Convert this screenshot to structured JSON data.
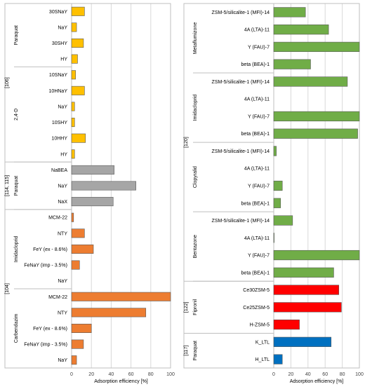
{
  "chart_data": [
    {
      "type": "bar",
      "orientation": "horizontal",
      "xlabel": "Adsorption efficiency [%]",
      "xlim": [
        0,
        100
      ],
      "xticks": [
        "0",
        "20",
        "40",
        "60",
        "80",
        "100"
      ],
      "grid": true,
      "groups": [
        {
          "ref": "[106]",
          "subgroups": [
            {
              "label": "Paraquat",
              "bars": [
                {
                  "category": "30SNaY",
                  "value": 13,
                  "color": "#FFC000"
                },
                {
                  "category": "NaY",
                  "value": 5,
                  "color": "#FFC000"
                },
                {
                  "category": "30SHY",
                  "value": 12,
                  "color": "#FFC000"
                },
                {
                  "category": "HY",
                  "value": 6,
                  "color": "#FFC000"
                }
              ]
            },
            {
              "label": "2,4-D",
              "bars": [
                {
                  "category": "10SNaY",
                  "value": 4,
                  "color": "#FFC000"
                },
                {
                  "category": "10HNaY",
                  "value": 13,
                  "color": "#FFC000"
                },
                {
                  "category": "NaY",
                  "value": 3,
                  "color": "#FFC000"
                },
                {
                  "category": "10SHY",
                  "value": 3,
                  "color": "#FFC000"
                },
                {
                  "category": "10HHY",
                  "value": 14,
                  "color": "#FFC000"
                },
                {
                  "category": "HY",
                  "value": 3,
                  "color": "#FFC000"
                }
              ]
            }
          ]
        },
        {
          "ref": "[114, 115]",
          "subgroups": [
            {
              "label": "Paraquat",
              "bars": [
                {
                  "category": "NaBEA",
                  "value": 43,
                  "color": "#A6A6A6"
                },
                {
                  "category": "NaY",
                  "value": 65,
                  "color": "#A6A6A6"
                },
                {
                  "category": "NaX",
                  "value": 42,
                  "color": "#A6A6A6"
                }
              ]
            }
          ]
        },
        {
          "ref": "[104]",
          "subgroups": [
            {
              "label": "Imidacloprid",
              "bars": [
                {
                  "category": "MCM-22",
                  "value": 2,
                  "color": "#ED7D31"
                },
                {
                  "category": "NTY",
                  "value": 13,
                  "color": "#ED7D31"
                },
                {
                  "category": "FeY (ex - 8.6%)",
                  "value": 22,
                  "color": "#ED7D31"
                },
                {
                  "category": "FeNaY (imp - 3.5%)",
                  "value": 8,
                  "color": "#ED7D31"
                },
                {
                  "category": "NaY",
                  "value": 0,
                  "color": "#ED7D31"
                }
              ]
            },
            {
              "label": "Carbendazim",
              "bars": [
                {
                  "category": "MCM-22",
                  "value": 100,
                  "color": "#ED7D31"
                },
                {
                  "category": "NTY",
                  "value": 75,
                  "color": "#ED7D31"
                },
                {
                  "category": "FeY (ex - 8.6%)",
                  "value": 20,
                  "color": "#ED7D31"
                },
                {
                  "category": "FeNaY (imp - 3.5%)",
                  "value": 12,
                  "color": "#ED7D31"
                },
                {
                  "category": "NaY",
                  "value": 5,
                  "color": "#ED7D31"
                }
              ]
            }
          ]
        }
      ]
    },
    {
      "type": "bar",
      "orientation": "horizontal",
      "xlabel": "Adsorption efficiency [%]",
      "xlim": [
        0,
        100
      ],
      "xticks": [
        "0",
        "20",
        "40",
        "60",
        "80",
        "100"
      ],
      "grid": true,
      "groups": [
        {
          "ref": "[120]",
          "subgroups": [
            {
              "label": "Metaflumizone",
              "bars": [
                {
                  "category": "ZSM-5/silicalite-1 (MFI)-14",
                  "value": 37,
                  "color": "#70AD47"
                },
                {
                  "category": "4A (LTA)-11",
                  "value": 64,
                  "color": "#70AD47"
                },
                {
                  "category": "Y (FAU)-7",
                  "value": 100,
                  "color": "#70AD47"
                },
                {
                  "category": "beta (BEA)-1",
                  "value": 43,
                  "color": "#70AD47"
                }
              ]
            },
            {
              "label": "Imidacloprid",
              "bars": [
                {
                  "category": "ZSM-5/silicalite-1 (MFI)-14",
                  "value": 86,
                  "color": "#70AD47"
                },
                {
                  "category": "4A (LTA)-11",
                  "value": 0,
                  "color": "#70AD47"
                },
                {
                  "category": "Y (FAU)-7",
                  "value": 100,
                  "color": "#70AD47"
                },
                {
                  "category": "beta (BEA)-1",
                  "value": 98,
                  "color": "#70AD47"
                }
              ]
            },
            {
              "label": "Clopyralid",
              "bars": [
                {
                  "category": "ZSM-5/silicalite-1 (MFI)-14",
                  "value": 3,
                  "color": "#70AD47"
                },
                {
                  "category": "4A (LTA)-11",
                  "value": 0,
                  "color": "#70AD47"
                },
                {
                  "category": "Y (FAU)-7",
                  "value": 10,
                  "color": "#70AD47"
                },
                {
                  "category": "beta (BEA)-1",
                  "value": 8,
                  "color": "#70AD47"
                }
              ]
            },
            {
              "label": "Bentazone",
              "bars": [
                {
                  "category": "ZSM-5/silicalite-1 (MFI)-14",
                  "value": 22,
                  "color": "#70AD47"
                },
                {
                  "category": "4A (LTA)-11",
                  "value": 0.5,
                  "color": "#70AD47"
                },
                {
                  "category": "Y (FAU)-7",
                  "value": 100,
                  "color": "#70AD47"
                },
                {
                  "category": "beta (BEA)-1",
                  "value": 70,
                  "color": "#70AD47"
                }
              ]
            }
          ]
        },
        {
          "ref": "[122]",
          "subgroups": [
            {
              "label": "Fipronil",
              "bars": [
                {
                  "category": "Ce30ZSM-5",
                  "value": 76,
                  "color": "#FF0000"
                },
                {
                  "category": "Ce25ZSM-5",
                  "value": 79,
                  "color": "#FF0000"
                },
                {
                  "category": "H-ZSM-5",
                  "value": 30,
                  "color": "#FF0000"
                }
              ]
            }
          ]
        },
        {
          "ref": "[117]",
          "subgroups": [
            {
              "label": "Paraquat",
              "bars": [
                {
                  "category": "K_LTL",
                  "value": 67,
                  "color": "#0070C0"
                },
                {
                  "category": "H_LTL",
                  "value": 10,
                  "color": "#0070C0"
                }
              ]
            }
          ]
        }
      ]
    }
  ]
}
